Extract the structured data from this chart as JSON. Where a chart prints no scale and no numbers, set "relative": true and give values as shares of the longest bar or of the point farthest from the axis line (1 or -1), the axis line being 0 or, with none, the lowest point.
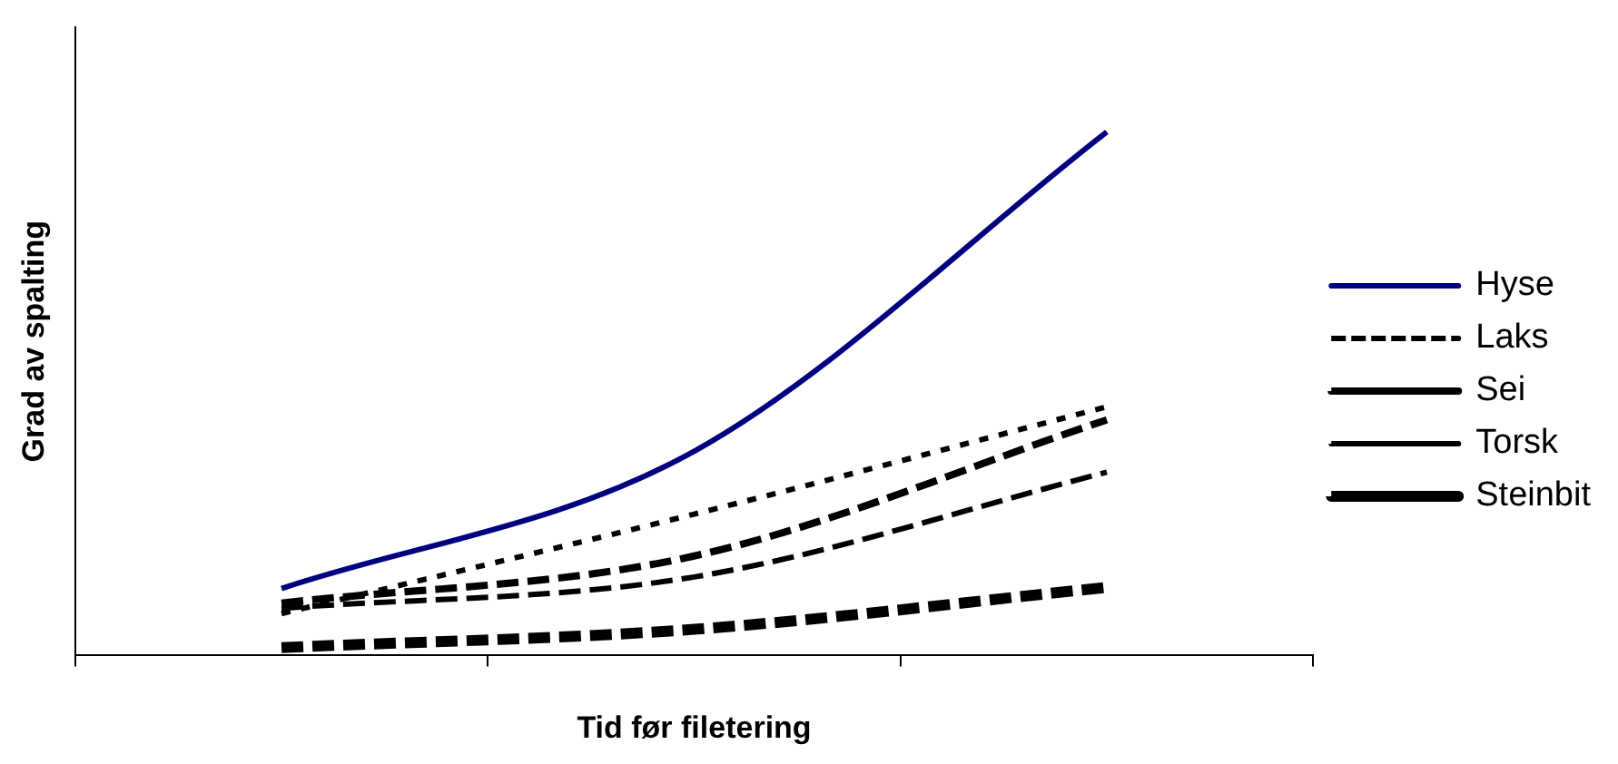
{
  "chart_data": {
    "type": "line",
    "relative": true,
    "xlabel": "Tid før filetering",
    "ylabel": "Grad av spalting",
    "categories": [
      null,
      null,
      null
    ],
    "series": [
      {
        "name": "Hyse",
        "color": "#000080",
        "line_style": "solid",
        "values": [
          0.128,
          0.39,
          1
        ]
      },
      {
        "name": "Laks",
        "color": "#000000",
        "line_style": "dotted",
        "values": [
          0.08,
          0.27,
          0.475
        ]
      },
      {
        "name": "Sei",
        "color": "#000000",
        "line_style": "dashed",
        "values": [
          0.1,
          0.19,
          0.45
        ]
      },
      {
        "name": "Torsk",
        "color": "#000000",
        "line_style": "dashed",
        "values": [
          0.09,
          0.15,
          0.35
        ]
      },
      {
        "name": "Steinbit",
        "color": "#000000",
        "line_style": "dashed",
        "values": [
          0.015,
          0.05,
          0.13
        ]
      }
    ],
    "legend": "right",
    "grid": false,
    "marker": "none"
  }
}
